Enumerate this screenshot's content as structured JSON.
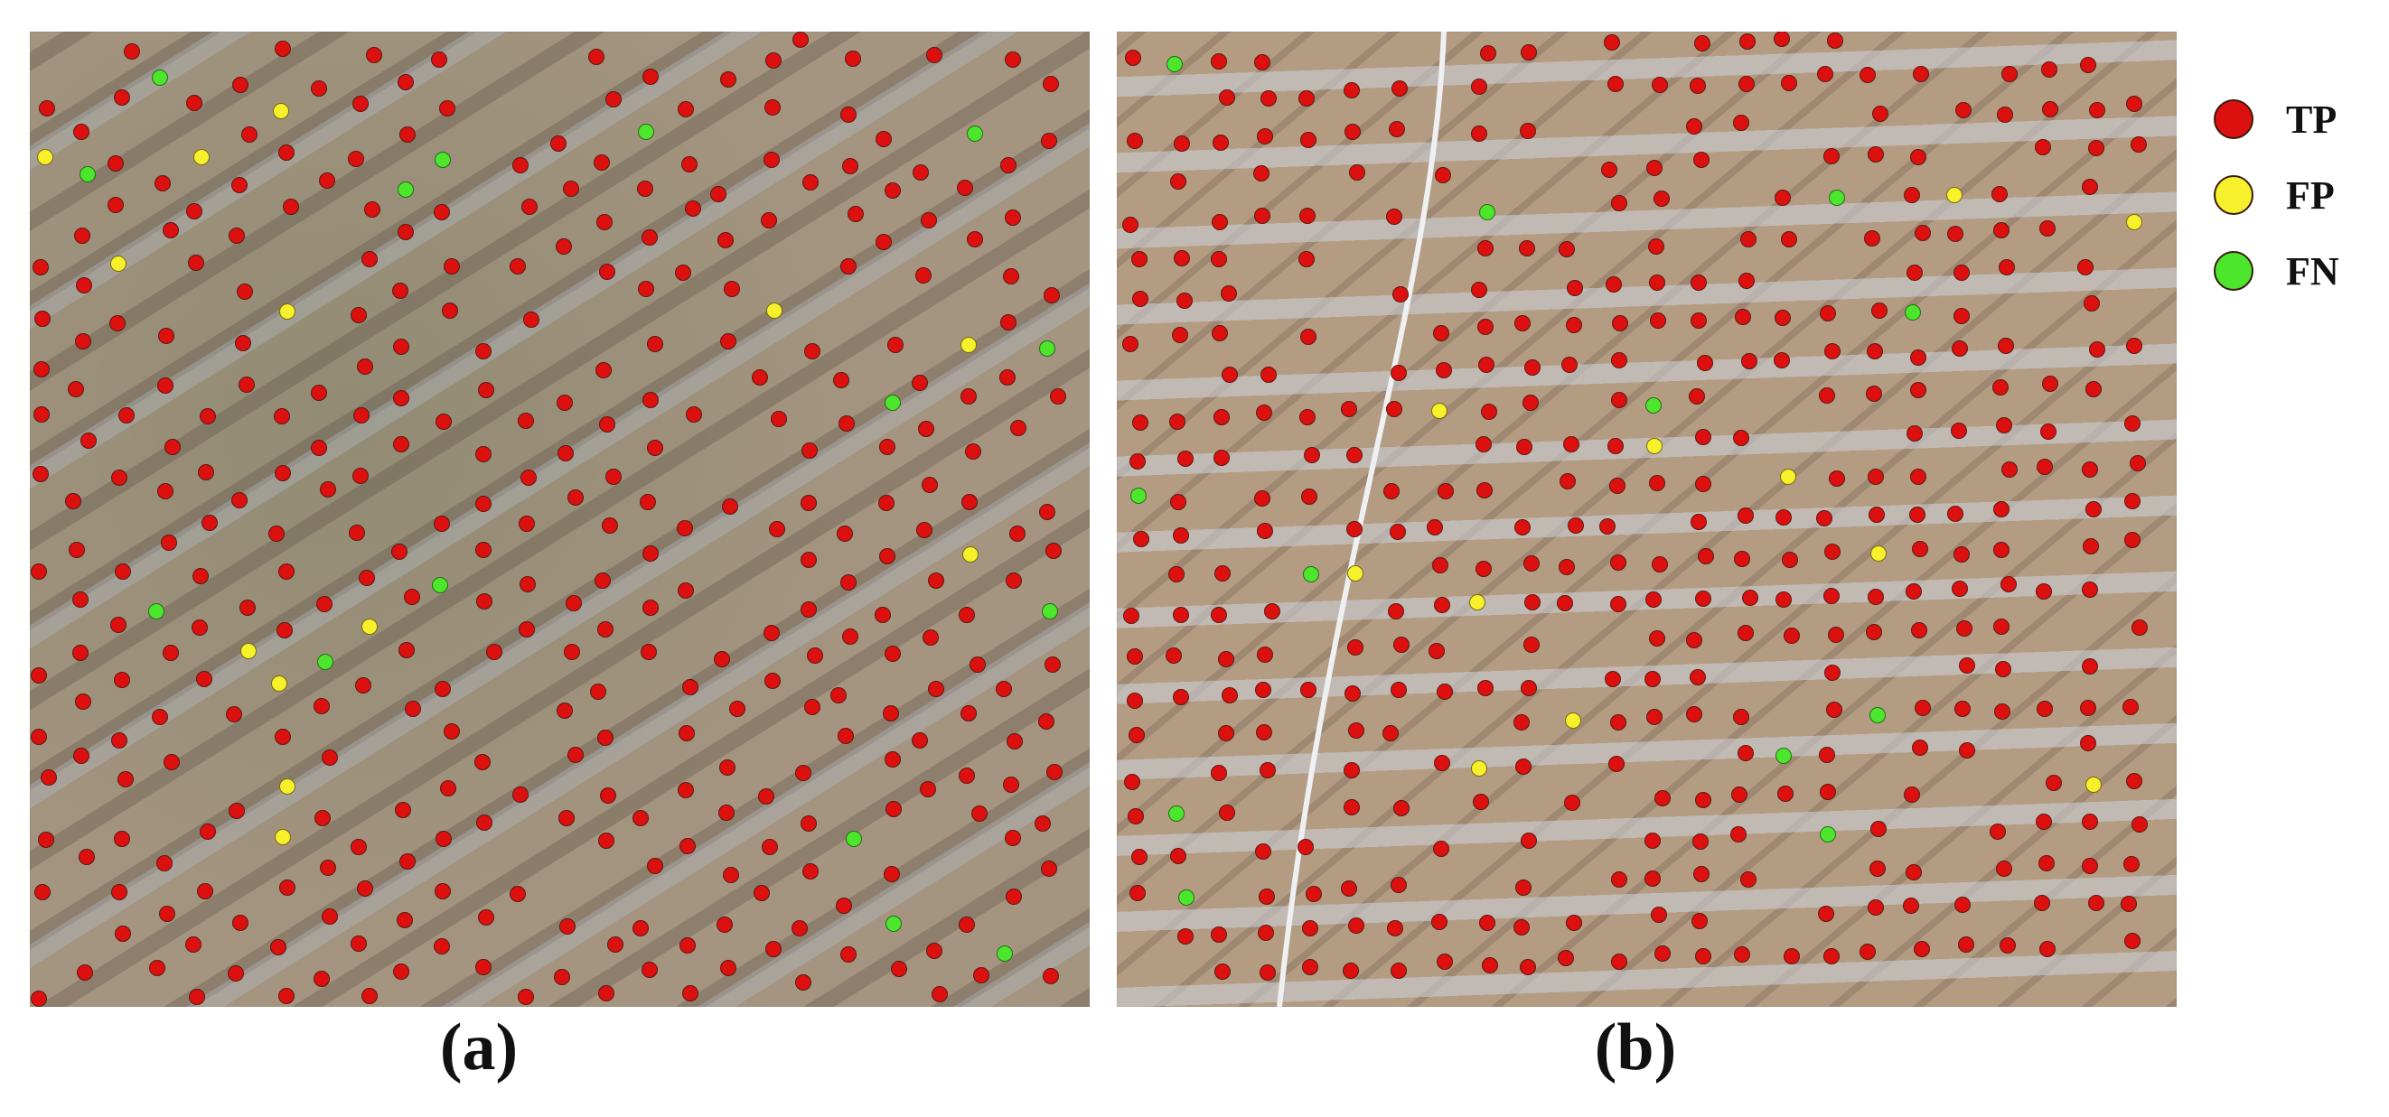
{
  "panels": [
    {
      "id": "a",
      "label": "(a)"
    },
    {
      "id": "b",
      "label": "(b)"
    }
  ],
  "legend": [
    {
      "key": "tp",
      "label": "TP",
      "color": "#dd1010"
    },
    {
      "key": "fp",
      "label": "FP",
      "color": "#f7f12b"
    },
    {
      "key": "fn",
      "label": "FN",
      "color": "#4ce62c"
    }
  ]
}
